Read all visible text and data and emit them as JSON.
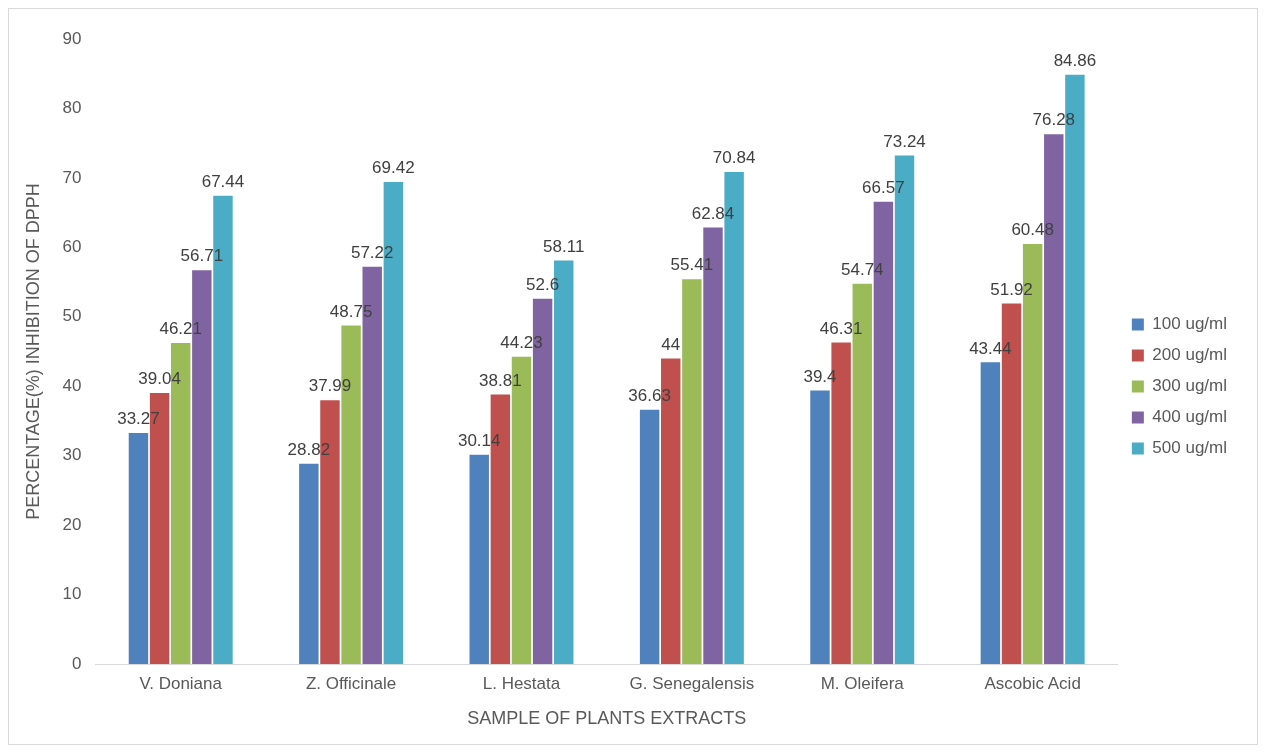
{
  "chart_data": {
    "type": "bar",
    "xlabel": "SAMPLE OF PLANTS EXTRACTS",
    "ylabel": "PERCENTAGE(%) INHIBITION OF DPPH",
    "categories": [
      "V. Doniana",
      "Z. Officinale",
      "L. Hestata",
      "G. Senegalensis",
      "M. Oleifera",
      "Ascobic Acid"
    ],
    "series": [
      {
        "name": "100 ug/ml",
        "color": "#4f81bd",
        "values": [
          33.27,
          28.82,
          30.14,
          36.63,
          39.4,
          43.44
        ]
      },
      {
        "name": "200 ug/ml",
        "color": "#c0504d",
        "values": [
          39.04,
          37.99,
          38.81,
          44,
          46.31,
          51.92
        ]
      },
      {
        "name": "300 ug/ml",
        "color": "#9bbb59",
        "values": [
          46.21,
          48.75,
          44.23,
          55.41,
          54.74,
          60.48
        ]
      },
      {
        "name": "400 ug/ml",
        "color": "#8064a2",
        "values": [
          56.71,
          57.22,
          52.6,
          62.84,
          66.57,
          76.28
        ]
      },
      {
        "name": "500 ug/ml",
        "color": "#4bacc6",
        "values": [
          67.44,
          69.42,
          58.11,
          70.84,
          73.24,
          84.86
        ]
      }
    ],
    "ylim": [
      0,
      90
    ],
    "yticks": [
      0,
      10,
      20,
      30,
      40,
      50,
      60,
      70,
      80,
      90
    ],
    "grid": false,
    "legend": "right",
    "data_labels": true
  }
}
